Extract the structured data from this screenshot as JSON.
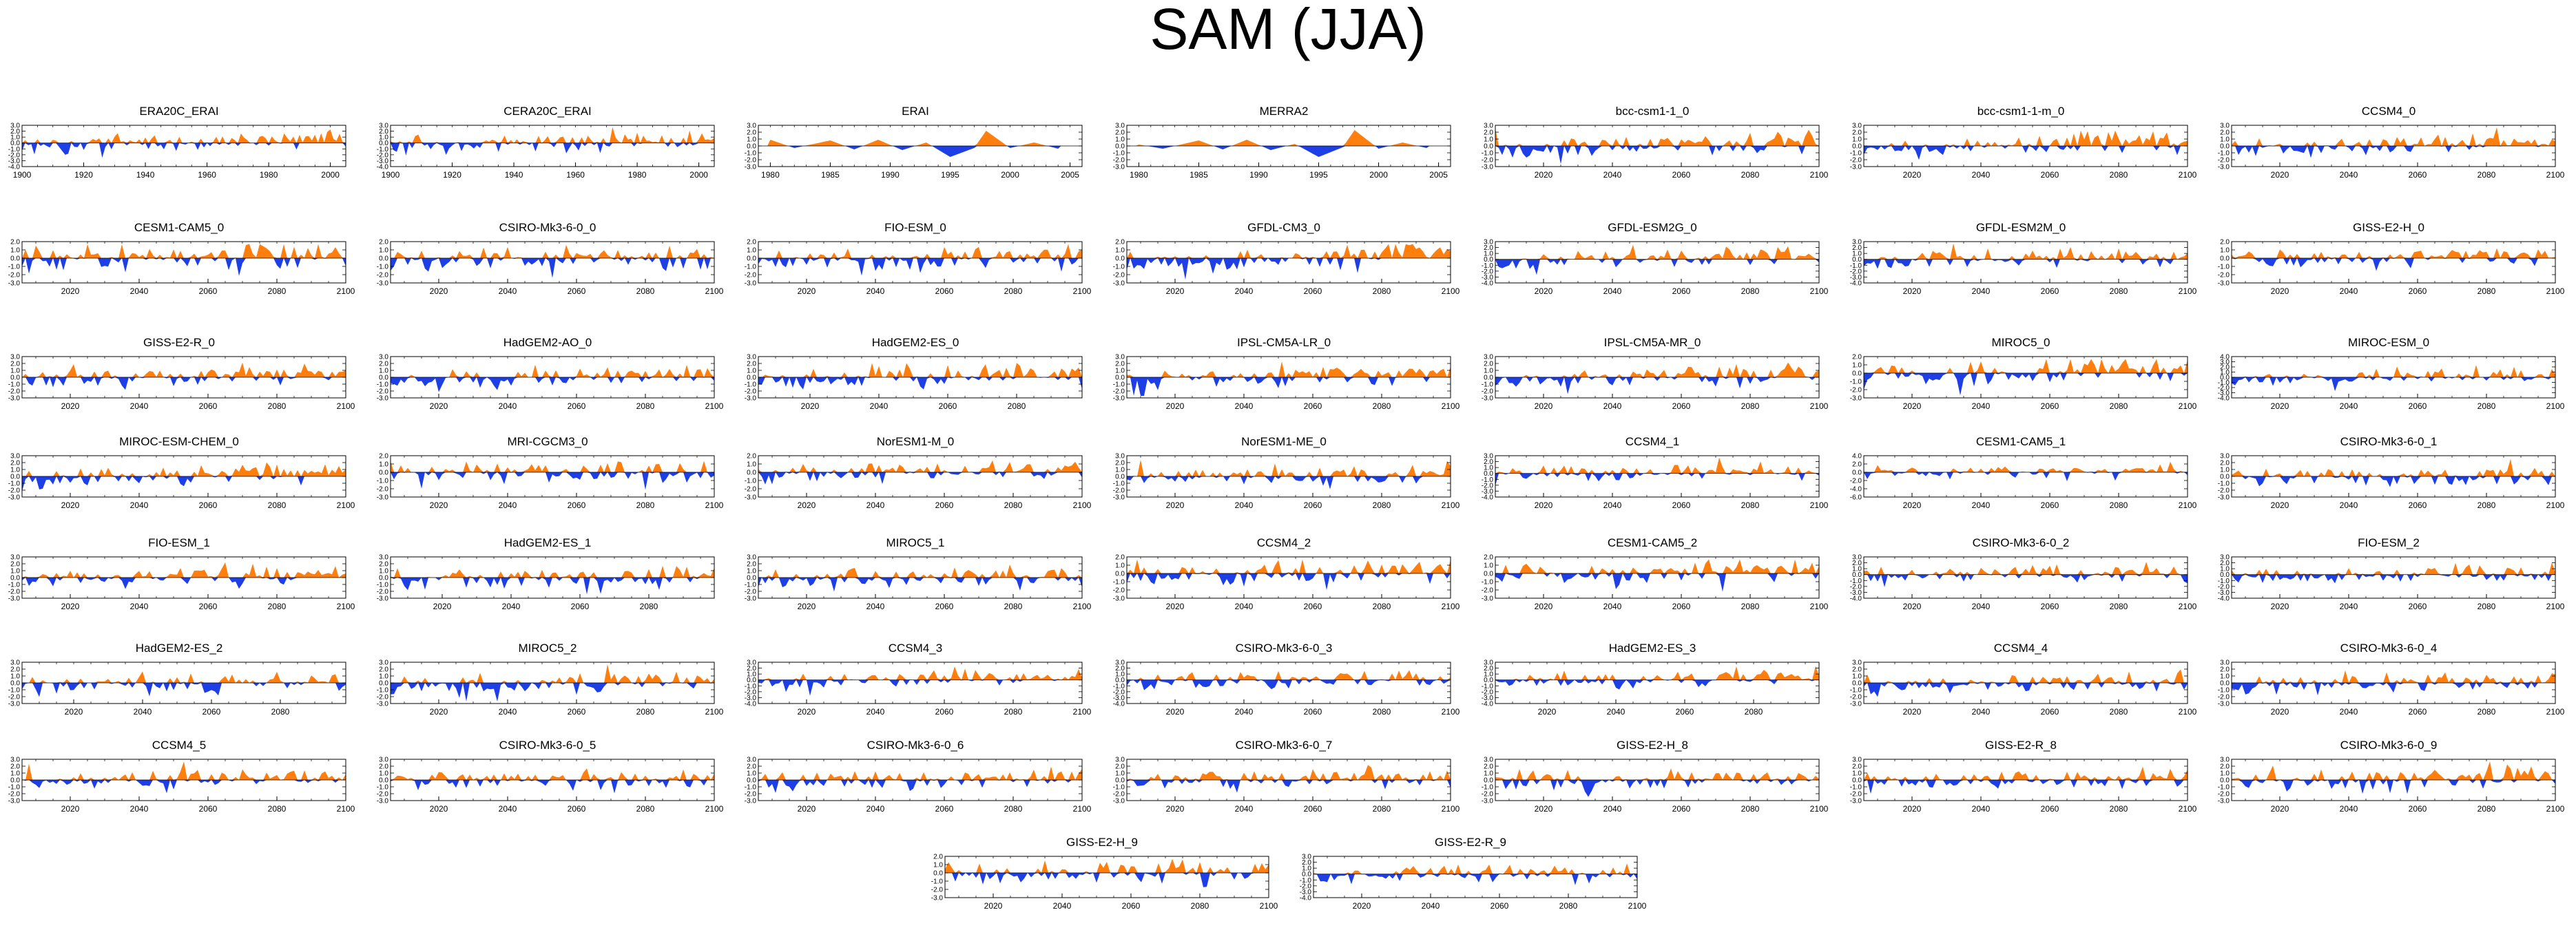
{
  "title": "SAM (JJA)",
  "colors": {
    "positive": "#ff7f0e",
    "negative": "#1f3fe6",
    "axis": "#000000"
  },
  "rows": [
    [
      "ERA20C_ERAI",
      "CERA20C_ERAI",
      "ERAI",
      "MERRA2",
      "bcc-csm1-1_0",
      "bcc-csm1-1-m_0",
      "CCSM4_0"
    ],
    [
      "CESM1-CAM5_0",
      "CSIRO-Mk3-6-0_0",
      "FIO-ESM_0",
      "GFDL-CM3_0",
      "GFDL-ESM2G_0",
      "GFDL-ESM2M_0",
      "GISS-E2-H_0"
    ],
    [
      "GISS-E2-R_0",
      "HadGEM2-AO_0",
      "HadGEM2-ES_0",
      "IPSL-CM5A-LR_0",
      "IPSL-CM5A-MR_0",
      "MIROC5_0",
      "MIROC-ESM_0"
    ],
    [
      "MIROC-ESM-CHEM_0",
      "MRI-CGCM3_0",
      "NorESM1-M_0",
      "NorESM1-ME_0",
      "CCSM4_1",
      "CESM1-CAM5_1",
      "CSIRO-Mk3-6-0_1"
    ],
    [
      "FIO-ESM_1",
      "HadGEM2-ES_1",
      "MIROC5_1",
      "CCSM4_2",
      "CESM1-CAM5_2",
      "CSIRO-Mk3-6-0_2",
      "FIO-ESM_2"
    ],
    [
      "HadGEM2-ES_2",
      "MIROC5_2",
      "CCSM4_3",
      "CSIRO-Mk3-6-0_3",
      "HadGEM2-ES_3",
      "CCSM4_4",
      "CSIRO-Mk3-6-0_4"
    ],
    [
      "CCSM4_5",
      "CSIRO-Mk3-6-0_5",
      "CSIRO-Mk3-6-0_6",
      "CSIRO-Mk3-6-0_7",
      "GISS-E2-H_8",
      "GISS-E2-R_8",
      "CSIRO-Mk3-6-0_9"
    ],
    [
      "GISS-E2-H_9",
      "GISS-E2-R_9"
    ]
  ],
  "chart_data": {
    "type": "area",
    "title": "SAM (JJA)",
    "description_series": "standardized SAM index per year, positive filled orange, negative filled blue",
    "panel_types": {
      "hist1900": {
        "xrange": [
          1900,
          2005
        ],
        "xticks": [
          1900,
          1920,
          1940,
          1960,
          1980,
          2000
        ]
      },
      "hist1979": {
        "xrange": [
          1979,
          2006
        ],
        "xticks": [
          1980,
          1985,
          1990,
          1995,
          2000,
          2005
        ]
      },
      "proj": {
        "xrange": [
          2006,
          2100
        ],
        "xticks": [
          2020,
          2040,
          2060,
          2080,
          2100
        ]
      },
      "hadgem": {
        "xrange": [
          2005,
          2099
        ],
        "xticks": [
          2020,
          2040,
          2060,
          2080
        ]
      }
    },
    "ytick_sets": {
      "y3to4": {
        "ylim": [
          -4,
          3
        ],
        "ticks": [
          "3.0",
          "2.0",
          "1.0",
          "0.0",
          "-1.0",
          "-2.0",
          "-3.0",
          "-4.0"
        ]
      },
      "y3to3": {
        "ylim": [
          -3,
          3
        ],
        "ticks": [
          "3.0",
          "2.0",
          "1.0",
          "0.0",
          "-1.0",
          "-2.0",
          "-3.0"
        ]
      },
      "y2to3": {
        "ylim": [
          -3,
          2
        ],
        "ticks": [
          "2.0",
          "1.0",
          "0.0",
          "-1.0",
          "-2.0",
          "-3.0"
        ]
      },
      "y4to4": {
        "ylim": [
          -4,
          4
        ],
        "ticks": [
          "4.0",
          "3.0",
          "2.0",
          "1.0",
          "0.0",
          "-1.0",
          "-2.0",
          "-3.0",
          "-4.0"
        ]
      },
      "y4to6": {
        "ylim": [
          -6,
          4
        ],
        "ticks": [
          "4.0",
          "2.0",
          "0.0",
          "-2.0",
          "-4.0",
          "-6.0"
        ]
      }
    },
    "panels": {
      "ERA20C_ERAI": {
        "x": "hist1900",
        "y": "y3to4",
        "trend": 0.9
      },
      "CERA20C_ERAI": {
        "x": "hist1900",
        "y": "y3to4",
        "trend": 0.6
      },
      "ERAI": {
        "x": "hist1979",
        "y": "y3to3",
        "trend": 0.0
      },
      "MERRA2": {
        "x": "hist1979",
        "y": "y3to3",
        "trend": 0.0
      },
      "bcc-csm1-1_0": {
        "x": "proj",
        "y": "y3to3",
        "trend": 1.0
      },
      "bcc-csm1-1-m_0": {
        "x": "proj",
        "y": "y3to3",
        "trend": 0.8
      },
      "CCSM4_0": {
        "x": "proj",
        "y": "y3to3",
        "trend": 0.8
      },
      "CESM1-CAM5_0": {
        "x": "proj",
        "y": "y2to3",
        "trend": 0.4
      },
      "CSIRO-Mk3-6-0_0": {
        "x": "proj",
        "y": "y2to3",
        "trend": 0.3
      },
      "FIO-ESM_0": {
        "x": "proj",
        "y": "y2to3",
        "trend": 0.3
      },
      "GFDL-CM3_0": {
        "x": "proj",
        "y": "y2to3",
        "trend": 0.9
      },
      "GFDL-ESM2G_0": {
        "x": "proj",
        "y": "y3to4",
        "trend": 1.0
      },
      "GFDL-ESM2M_0": {
        "x": "proj",
        "y": "y3to4",
        "trend": 0.6
      },
      "GISS-E2-H_0": {
        "x": "proj",
        "y": "y2to3",
        "trend": 0.6
      },
      "GISS-E2-R_0": {
        "x": "proj",
        "y": "y3to3",
        "trend": 0.7
      },
      "HadGEM2-AO_0": {
        "x": "proj",
        "y": "y3to3",
        "trend": 0.7
      },
      "HadGEM2-ES_0": {
        "x": "hadgem",
        "y": "y3to3",
        "trend": 0.8
      },
      "IPSL-CM5A-LR_0": {
        "x": "proj",
        "y": "y3to3",
        "trend": 0.5
      },
      "IPSL-CM5A-MR_0": {
        "x": "proj",
        "y": "y3to3",
        "trend": 0.8
      },
      "MIROC5_0": {
        "x": "proj",
        "y": "y2to3",
        "trend": 0.9
      },
      "MIROC-ESM_0": {
        "x": "proj",
        "y": "y4to4",
        "trend": 0.8
      },
      "MIROC-ESM-CHEM_0": {
        "x": "proj",
        "y": "y3to3",
        "trend": 0.8
      },
      "MRI-CGCM3_0": {
        "x": "proj",
        "y": "y2to3",
        "trend": 0.3
      },
      "NorESM1-M_0": {
        "x": "proj",
        "y": "y2to3",
        "trend": 0.4
      },
      "NorESM1-ME_0": {
        "x": "proj",
        "y": "y3to3",
        "trend": 0.5
      },
      "CCSM4_1": {
        "x": "proj",
        "y": "y3to4",
        "trend": 0.5
      },
      "CESM1-CAM5_1": {
        "x": "proj",
        "y": "y4to6",
        "trend": 0.4
      },
      "CSIRO-Mk3-6-0_1": {
        "x": "proj",
        "y": "y3to3",
        "trend": 0.4
      },
      "FIO-ESM_1": {
        "x": "proj",
        "y": "y3to3",
        "trend": 0.4
      },
      "HadGEM2-ES_1": {
        "x": "hadgem",
        "y": "y3to3",
        "trend": 0.4
      },
      "MIROC5_1": {
        "x": "proj",
        "y": "y3to3",
        "trend": 0.5
      },
      "CCSM4_2": {
        "x": "proj",
        "y": "y2to3",
        "trend": 0.4
      },
      "CESM1-CAM5_2": {
        "x": "proj",
        "y": "y2to3",
        "trend": 0.2
      },
      "CSIRO-Mk3-6-0_2": {
        "x": "proj",
        "y": "y3to4",
        "trend": 0.3
      },
      "FIO-ESM_2": {
        "x": "proj",
        "y": "y3to4",
        "trend": 0.4
      },
      "HadGEM2-ES_2": {
        "x": "hadgem",
        "y": "y3to3",
        "trend": 0.9
      },
      "MIROC5_2": {
        "x": "proj",
        "y": "y3to3",
        "trend": 0.7
      },
      "CCSM4_3": {
        "x": "proj",
        "y": "y3to4",
        "trend": 0.5
      },
      "CSIRO-Mk3-6-0_3": {
        "x": "proj",
        "y": "y3to4",
        "trend": 0.4
      },
      "HadGEM2-ES_3": {
        "x": "hadgem",
        "y": "y3to4",
        "trend": 0.9
      },
      "CCSM4_4": {
        "x": "proj",
        "y": "y3to3",
        "trend": 0.5
      },
      "CSIRO-Mk3-6-0_4": {
        "x": "proj",
        "y": "y3to3",
        "trend": 0.3
      },
      "CCSM4_5": {
        "x": "proj",
        "y": "y3to3",
        "trend": 0.4
      },
      "CSIRO-Mk3-6-0_5": {
        "x": "proj",
        "y": "y3to3",
        "trend": 0.4
      },
      "CSIRO-Mk3-6-0_6": {
        "x": "proj",
        "y": "y3to3",
        "trend": 0.5
      },
      "CSIRO-Mk3-6-0_7": {
        "x": "proj",
        "y": "y3to3",
        "trend": 0.4
      },
      "GISS-E2-H_8": {
        "x": "proj",
        "y": "y3to3",
        "trend": 0.3
      },
      "GISS-E2-R_8": {
        "x": "proj",
        "y": "y3to3",
        "trend": 0.4
      },
      "CSIRO-Mk3-6-0_9": {
        "x": "proj",
        "y": "y3to3",
        "trend": 0.4
      },
      "GISS-E2-H_9": {
        "x": "proj",
        "y": "y2to3",
        "trend": 0.3
      },
      "GISS-E2-R_9": {
        "x": "proj",
        "y": "y3to4",
        "trend": 0.4
      }
    },
    "peaks": {
      "ERAI": [
        [
          1980,
          0.9
        ],
        [
          1982,
          -0.3
        ],
        [
          1985,
          0.8
        ],
        [
          1987,
          -0.5
        ],
        [
          1989,
          0.9
        ],
        [
          1991,
          -0.6
        ],
        [
          1993,
          0.5
        ],
        [
          1995,
          -1.6
        ],
        [
          1997,
          -0.3
        ],
        [
          1998,
          2.2
        ],
        [
          2000,
          -0.3
        ],
        [
          2002,
          0.5
        ],
        [
          2004,
          -0.4
        ]
      ],
      "MERRA2": [
        [
          1980,
          0.2
        ],
        [
          1982,
          -0.4
        ],
        [
          1985,
          0.8
        ],
        [
          1987,
          -0.5
        ],
        [
          1989,
          0.9
        ],
        [
          1991,
          -0.6
        ],
        [
          1993,
          0.3
        ],
        [
          1995,
          -1.6
        ],
        [
          1997,
          -0.2
        ],
        [
          1998,
          2.3
        ],
        [
          2000,
          -0.4
        ],
        [
          2002,
          0.5
        ],
        [
          2004,
          -0.3
        ]
      ]
    }
  }
}
